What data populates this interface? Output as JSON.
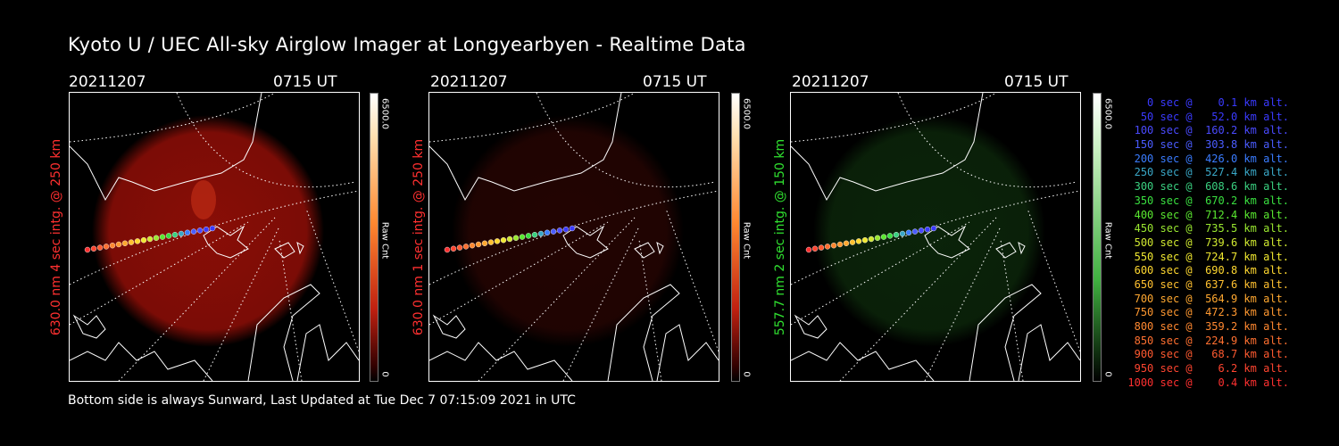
{
  "title": "Kyoto U / UEC All-sky Airglow Imager at Longyearbyen - Realtime Data",
  "panels": [
    {
      "date": "20211207",
      "time": "0715 UT",
      "side_label": "630.0 nm  4 sec intg. @ 250 km",
      "color": "#ff3030",
      "glow": "#a11008",
      "cbar_max": "6500.0",
      "cbar_min": "0",
      "cbar_unit": "Raw Cnt",
      "glow_intensity": 0.85
    },
    {
      "date": "20211207",
      "time": "0715 UT",
      "side_label": "630.0 nm  1 sec intg. @ 250 km",
      "color": "#ff3030",
      "glow": "#3a0704",
      "cbar_max": "6500.0",
      "cbar_min": "0",
      "cbar_unit": "Raw Cnt",
      "glow_intensity": 0.6
    },
    {
      "date": "20211207",
      "time": "0715 UT",
      "side_label": "557.7 nm  2 sec intg. @ 150 km",
      "color": "#30e030",
      "glow": "#123b10",
      "cbar_max": "6500.0",
      "cbar_min": "0",
      "cbar_unit": "Raw Cnt",
      "glow_intensity": 0.6
    }
  ],
  "legend": [
    {
      "text": "   0 sec @    0.1 km alt.",
      "color": "#3a3aff"
    },
    {
      "text": "  50 sec @   52.0 km alt.",
      "color": "#3a3aff"
    },
    {
      "text": " 100 sec @  160.2 km alt.",
      "color": "#4a4aff"
    },
    {
      "text": " 150 sec @  303.8 km alt.",
      "color": "#4a5cff"
    },
    {
      "text": " 200 sec @  426.0 km alt.",
      "color": "#3a7cff"
    },
    {
      "text": " 250 sec @  527.4 km alt.",
      "color": "#3aa8c8"
    },
    {
      "text": " 300 sec @  608.6 km alt.",
      "color": "#3ad080"
    },
    {
      "text": " 350 sec @  670.2 km alt.",
      "color": "#3ae040"
    },
    {
      "text": " 400 sec @  712.4 km alt.",
      "color": "#5ae830"
    },
    {
      "text": " 450 sec @  735.5 km alt.",
      "color": "#9ae830"
    },
    {
      "text": " 500 sec @  739.6 km alt.",
      "color": "#d0e830"
    },
    {
      "text": " 550 sec @  724.7 km alt.",
      "color": "#f0e830"
    },
    {
      "text": " 600 sec @  690.8 km alt.",
      "color": "#ffd830"
    },
    {
      "text": " 650 sec @  637.6 km alt.",
      "color": "#ffc030"
    },
    {
      "text": " 700 sec @  564.9 km alt.",
      "color": "#ffa830"
    },
    {
      "text": " 750 sec @  472.3 km alt.",
      "color": "#ff9830"
    },
    {
      "text": " 800 sec @  359.2 km alt.",
      "color": "#ff8830"
    },
    {
      "text": " 850 sec @  224.9 km alt.",
      "color": "#ff7030"
    },
    {
      "text": " 900 sec @   68.7 km alt.",
      "color": "#ff5a30"
    },
    {
      "text": " 950 sec @    6.2 km alt.",
      "color": "#ff4530"
    },
    {
      "text": "1000 sec @    0.4 km alt.",
      "color": "#ff3030"
    }
  ],
  "footer": "Bottom side is always Sunward, Last Updated at Tue Dec  7 07:15:09 2021 in UTC"
}
